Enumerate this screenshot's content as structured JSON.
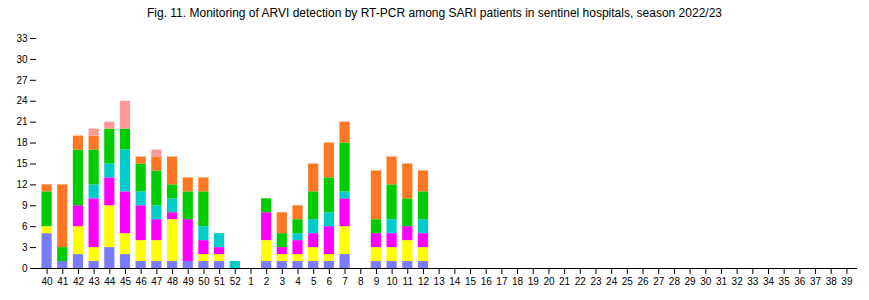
{
  "chart_data": {
    "type": "bar",
    "stacked": true,
    "title": "Fig. 11.  Monitoring of ARVI detection by RT-PCR among SARI patients in sentinel hospitals, season 2022/23",
    "categories": [
      "40",
      "41",
      "42",
      "43",
      "44",
      "45",
      "46",
      "47",
      "48",
      "49",
      "50",
      "51",
      "52",
      "1",
      "2",
      "3",
      "4",
      "5",
      "6",
      "7",
      "8",
      "9",
      "10",
      "11",
      "12",
      "13",
      "14",
      "15",
      "16",
      "17",
      "18",
      "19",
      "20",
      "21",
      "22",
      "23",
      "24",
      "25",
      "26",
      "27",
      "28",
      "29",
      "30",
      "31",
      "32",
      "33",
      "34",
      "35",
      "36",
      "37",
      "38",
      "39"
    ],
    "series": [
      {
        "color": "#7B7BFF",
        "values": [
          5,
          1,
          2,
          1,
          3,
          2,
          1,
          1,
          1,
          1,
          1,
          1,
          0,
          0,
          1,
          1,
          1,
          1,
          1,
          2,
          0,
          1,
          1,
          1,
          1,
          0,
          0,
          0,
          0,
          0,
          0,
          0,
          0,
          0,
          0,
          0,
          0,
          0,
          0,
          0,
          0,
          0,
          0,
          0,
          0,
          0,
          0,
          0,
          0,
          0,
          0,
          0
        ]
      },
      {
        "color": "#FFFF00",
        "values": [
          1,
          0,
          4,
          2,
          6,
          3,
          3,
          3,
          6,
          0,
          1,
          1,
          0,
          0,
          3,
          1,
          1,
          2,
          1,
          4,
          0,
          2,
          2,
          3,
          2,
          0,
          0,
          0,
          0,
          0,
          0,
          0,
          0,
          0,
          0,
          0,
          0,
          0,
          0,
          0,
          0,
          0,
          0,
          0,
          0,
          0,
          0,
          0,
          0,
          0,
          0,
          0
        ]
      },
      {
        "color": "#FF00FF",
        "values": [
          0,
          0,
          3,
          7,
          4,
          6,
          5,
          3,
          1,
          6,
          2,
          1,
          0,
          0,
          4,
          1,
          2,
          2,
          4,
          4,
          0,
          2,
          2,
          2,
          2,
          0,
          0,
          0,
          0,
          0,
          0,
          0,
          0,
          0,
          0,
          0,
          0,
          0,
          0,
          0,
          0,
          0,
          0,
          0,
          0,
          0,
          0,
          0,
          0,
          0,
          0,
          0
        ]
      },
      {
        "color": "#00CCCC",
        "values": [
          0,
          0,
          0,
          2,
          2,
          6,
          2,
          2,
          2,
          0,
          2,
          2,
          1,
          0,
          0,
          0,
          1,
          2,
          2,
          1,
          0,
          0,
          2,
          0,
          2,
          0,
          0,
          0,
          0,
          0,
          0,
          0,
          0,
          0,
          0,
          0,
          0,
          0,
          0,
          0,
          0,
          0,
          0,
          0,
          0,
          0,
          0,
          0,
          0,
          0,
          0,
          0
        ]
      },
      {
        "color": "#00CC00",
        "values": [
          5,
          2,
          8,
          5,
          5,
          3,
          4,
          5,
          2,
          4,
          5,
          0,
          0,
          0,
          2,
          2,
          2,
          4,
          5,
          7,
          0,
          2,
          5,
          4,
          4,
          0,
          0,
          0,
          0,
          0,
          0,
          0,
          0,
          0,
          0,
          0,
          0,
          0,
          0,
          0,
          0,
          0,
          0,
          0,
          0,
          0,
          0,
          0,
          0,
          0,
          0,
          0
        ]
      },
      {
        "color": "#FF7722",
        "values": [
          1,
          9,
          2,
          2,
          0,
          0,
          1,
          2,
          4,
          2,
          2,
          0,
          0,
          0,
          0,
          3,
          2,
          4,
          5,
          3,
          0,
          7,
          4,
          5,
          3,
          0,
          0,
          0,
          0,
          0,
          0,
          0,
          0,
          0,
          0,
          0,
          0,
          0,
          0,
          0,
          0,
          0,
          0,
          0,
          0,
          0,
          0,
          0,
          0,
          0,
          0,
          0
        ]
      },
      {
        "color": "#FF9999",
        "values": [
          0,
          0,
          0,
          1,
          1,
          4,
          0,
          1,
          0,
          0,
          0,
          0,
          0,
          0,
          0,
          0,
          0,
          0,
          0,
          0,
          0,
          0,
          0,
          0,
          0,
          0,
          0,
          0,
          0,
          0,
          0,
          0,
          0,
          0,
          0,
          0,
          0,
          0,
          0,
          0,
          0,
          0,
          0,
          0,
          0,
          0,
          0,
          0,
          0,
          0,
          0,
          0
        ]
      }
    ],
    "ylim": [
      0,
      33
    ],
    "yticks": [
      0,
      3,
      6,
      9,
      12,
      15,
      18,
      21,
      24,
      27,
      30,
      33
    ]
  }
}
